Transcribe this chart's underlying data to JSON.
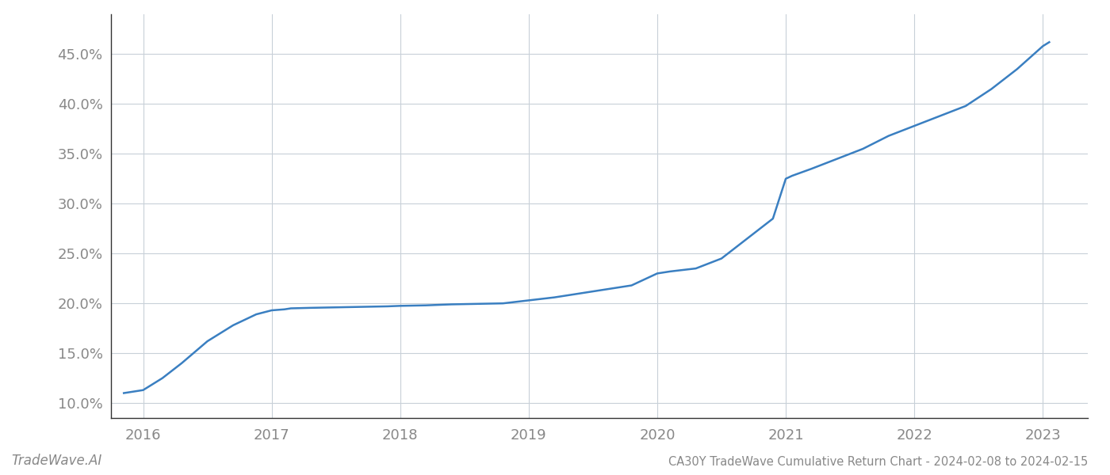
{
  "title": "CA30Y TradeWave Cumulative Return Chart - 2024-02-08 to 2024-02-15",
  "watermark": "TradeWave.AI",
  "line_color": "#3a7fc1",
  "line_width": 1.8,
  "background_color": "#ffffff",
  "grid_color": "#c8d0d8",
  "x_years": [
    2016,
    2017,
    2018,
    2019,
    2020,
    2021,
    2022,
    2023
  ],
  "x_data": [
    2015.85,
    2016.0,
    2016.15,
    2016.3,
    2016.5,
    2016.7,
    2016.88,
    2017.0,
    2017.1,
    2017.15,
    2017.3,
    2017.5,
    2017.7,
    2017.9,
    2018.0,
    2018.2,
    2018.4,
    2018.6,
    2018.8,
    2019.0,
    2019.2,
    2019.4,
    2019.6,
    2019.8,
    2020.0,
    2020.05,
    2020.1,
    2020.3,
    2020.5,
    2020.7,
    2020.9,
    2021.0,
    2021.05,
    2021.2,
    2021.4,
    2021.6,
    2021.8,
    2022.0,
    2022.2,
    2022.4,
    2022.6,
    2022.8,
    2023.0,
    2023.05
  ],
  "y_data": [
    11.0,
    11.3,
    12.5,
    14.0,
    16.2,
    17.8,
    18.9,
    19.3,
    19.4,
    19.5,
    19.55,
    19.6,
    19.65,
    19.7,
    19.75,
    19.8,
    19.9,
    19.95,
    20.0,
    20.3,
    20.6,
    21.0,
    21.4,
    21.8,
    23.0,
    23.1,
    23.2,
    23.5,
    24.5,
    26.5,
    28.5,
    32.5,
    32.8,
    33.5,
    34.5,
    35.5,
    36.8,
    37.8,
    38.8,
    39.8,
    41.5,
    43.5,
    45.8,
    46.2
  ],
  "ylim": [
    8.5,
    49.0
  ],
  "xlim": [
    2015.75,
    2023.35
  ],
  "yticks": [
    10.0,
    15.0,
    20.0,
    25.0,
    30.0,
    35.0,
    40.0,
    45.0
  ],
  "tick_label_color": "#888888",
  "tick_label_fontsize": 13,
  "title_fontsize": 10.5,
  "watermark_fontsize": 12,
  "spine_color": "#333333",
  "left_spine_color": "#333333"
}
